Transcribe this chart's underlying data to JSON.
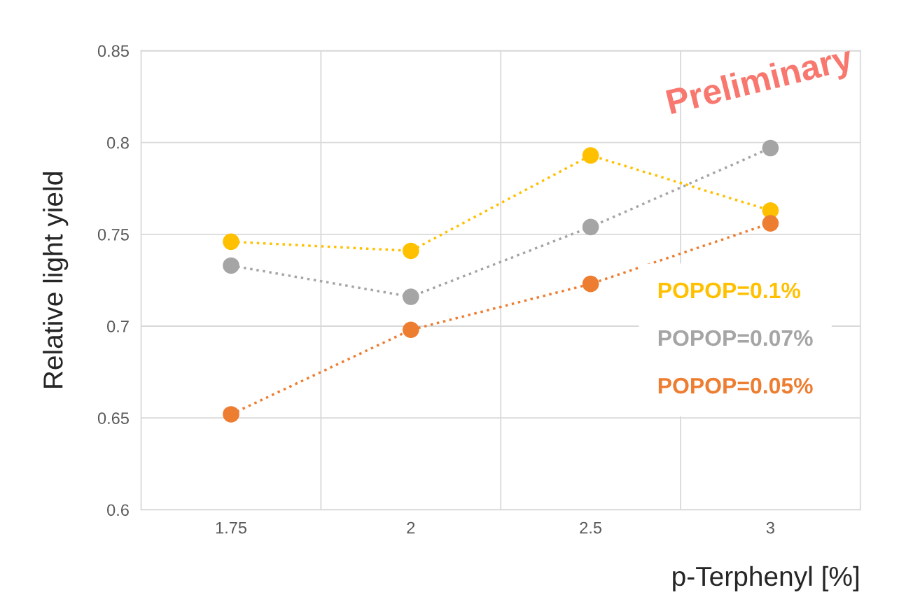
{
  "chart_data": {
    "type": "line",
    "xlabel": "p-Terphenyl [%]",
    "ylabel": "Relative light yield",
    "categories": [
      "1.75",
      "2",
      "2.5",
      "3"
    ],
    "series": [
      {
        "name": "POPOP=0.1%",
        "color": "#ffc000",
        "values": [
          0.746,
          0.741,
          0.793,
          0.763
        ]
      },
      {
        "name": "POPOP=0.07%",
        "color": "#a5a5a5",
        "values": [
          0.733,
          0.716,
          0.754,
          0.797
        ]
      },
      {
        "name": "POPOP=0.05%",
        "color": "#ed7d31",
        "values": [
          0.652,
          0.698,
          0.723,
          0.756
        ]
      }
    ],
    "ylim": [
      0.6,
      0.85
    ],
    "yticks": [
      0.6,
      0.65,
      0.7,
      0.75,
      0.8,
      0.85
    ],
    "grid": true,
    "legend": "bottom right",
    "marker": "circle",
    "line_style": "dotted",
    "annotations": [
      "Preliminary"
    ]
  }
}
